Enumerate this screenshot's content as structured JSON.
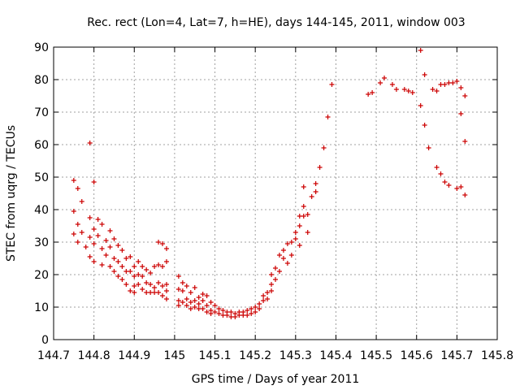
{
  "chart_data": {
    "type": "scatter",
    "title": "Rec. rect (Lon=4, Lat=7, h=HE), days 144-145, 2011, window 003",
    "xlabel": "GPS time / Days of year 2011",
    "ylabel": "STEC from uqrg / TECUs",
    "xlim": [
      144.7,
      145.8
    ],
    "ylim": [
      0,
      90
    ],
    "grid": true,
    "marker": "plus",
    "color": "#cc0000",
    "x_ticks": [
      "144.7",
      "144.8",
      "144.9",
      "145",
      "145.1",
      "145.2",
      "145.3",
      "145.4",
      "145.5",
      "145.6",
      "145.7",
      "145.8"
    ],
    "x_tick_values": [
      144.7,
      144.8,
      144.9,
      145.0,
      145.1,
      145.2,
      145.3,
      145.4,
      145.5,
      145.6,
      145.7,
      145.8
    ],
    "y_ticks": [
      "0",
      "10",
      "20",
      "30",
      "40",
      "50",
      "60",
      "70",
      "80",
      "90"
    ],
    "y_tick_values": [
      0,
      10,
      20,
      30,
      40,
      50,
      60,
      70,
      80,
      90
    ],
    "series": [
      {
        "name": "STEC",
        "points": [
          [
            144.75,
            49
          ],
          [
            144.75,
            39.5
          ],
          [
            144.75,
            32.5
          ],
          [
            144.76,
            46.5
          ],
          [
            144.76,
            35.5
          ],
          [
            144.76,
            30
          ],
          [
            144.77,
            42.5
          ],
          [
            144.77,
            33
          ],
          [
            144.78,
            28.5
          ],
          [
            144.79,
            60.5
          ],
          [
            144.79,
            37.5
          ],
          [
            144.79,
            31.5
          ],
          [
            144.79,
            25.5
          ],
          [
            144.8,
            48.5
          ],
          [
            144.8,
            34
          ],
          [
            144.8,
            29.5
          ],
          [
            144.8,
            24
          ],
          [
            144.81,
            37
          ],
          [
            144.81,
            32
          ],
          [
            144.82,
            35.5
          ],
          [
            144.82,
            28
          ],
          [
            144.82,
            23
          ],
          [
            144.83,
            30.5
          ],
          [
            144.83,
            26
          ],
          [
            144.84,
            33.5
          ],
          [
            144.84,
            28.5
          ],
          [
            144.84,
            22.5
          ],
          [
            144.85,
            31
          ],
          [
            144.85,
            25
          ],
          [
            144.85,
            21
          ],
          [
            144.86,
            29
          ],
          [
            144.86,
            24
          ],
          [
            144.86,
            19.5
          ],
          [
            144.87,
            27.5
          ],
          [
            144.87,
            22.5
          ],
          [
            144.87,
            18.5
          ],
          [
            144.88,
            25
          ],
          [
            144.88,
            21
          ],
          [
            144.88,
            17
          ],
          [
            144.89,
            25.5
          ],
          [
            144.89,
            21
          ],
          [
            144.89,
            15
          ],
          [
            144.9,
            22.5
          ],
          [
            144.9,
            19.5
          ],
          [
            144.9,
            16.5
          ],
          [
            144.9,
            14.5
          ],
          [
            144.91,
            24
          ],
          [
            144.91,
            20
          ],
          [
            144.91,
            17
          ],
          [
            144.92,
            22.5
          ],
          [
            144.92,
            19.5
          ],
          [
            144.92,
            15.5
          ],
          [
            144.93,
            21.5
          ],
          [
            144.93,
            17.5
          ],
          [
            144.93,
            14.5
          ],
          [
            144.94,
            20.5
          ],
          [
            144.94,
            17
          ],
          [
            144.94,
            14.5
          ],
          [
            144.95,
            22.5
          ],
          [
            144.95,
            16
          ],
          [
            144.95,
            14.5
          ],
          [
            144.96,
            30
          ],
          [
            144.96,
            23
          ],
          [
            144.96,
            17.5
          ],
          [
            144.96,
            14.5
          ],
          [
            144.97,
            29.5
          ],
          [
            144.97,
            22.5
          ],
          [
            144.97,
            16.5
          ],
          [
            144.97,
            13.5
          ],
          [
            144.98,
            28
          ],
          [
            144.98,
            24
          ],
          [
            144.98,
            17
          ],
          [
            144.98,
            15
          ],
          [
            144.98,
            12.5
          ],
          [
            145.01,
            19.5
          ],
          [
            145.01,
            15.5
          ],
          [
            145.01,
            12
          ],
          [
            145.01,
            10.5
          ],
          [
            145.02,
            17.5
          ],
          [
            145.02,
            15
          ],
          [
            145.02,
            11.5
          ],
          [
            145.03,
            16.5
          ],
          [
            145.03,
            12.5
          ],
          [
            145.03,
            10.5
          ],
          [
            145.04,
            14.5
          ],
          [
            145.04,
            11.5
          ],
          [
            145.04,
            9.5
          ],
          [
            145.05,
            16
          ],
          [
            145.05,
            12
          ],
          [
            145.05,
            10
          ],
          [
            145.06,
            13
          ],
          [
            145.06,
            11
          ],
          [
            145.06,
            9.5
          ],
          [
            145.07,
            14
          ],
          [
            145.07,
            12
          ],
          [
            145.07,
            9.5
          ],
          [
            145.08,
            13.5
          ],
          [
            145.08,
            10.5
          ],
          [
            145.08,
            8.5
          ],
          [
            145.09,
            11.5
          ],
          [
            145.09,
            9
          ],
          [
            145.09,
            8
          ],
          [
            145.1,
            10.5
          ],
          [
            145.1,
            8.5
          ],
          [
            145.11,
            9.5
          ],
          [
            145.11,
            8
          ],
          [
            145.12,
            9
          ],
          [
            145.12,
            7.5
          ],
          [
            145.13,
            8.5
          ],
          [
            145.13,
            7.5
          ],
          [
            145.14,
            8.5
          ],
          [
            145.14,
            7
          ],
          [
            145.15,
            8
          ],
          [
            145.15,
            7
          ],
          [
            145.16,
            8.5
          ],
          [
            145.16,
            7.5
          ],
          [
            145.17,
            8.5
          ],
          [
            145.17,
            7.5
          ],
          [
            145.18,
            9
          ],
          [
            145.18,
            7.5
          ],
          [
            145.19,
            9.5
          ],
          [
            145.19,
            8
          ],
          [
            145.2,
            10
          ],
          [
            145.2,
            8.5
          ],
          [
            145.21,
            11
          ],
          [
            145.21,
            9.5
          ],
          [
            145.22,
            13.5
          ],
          [
            145.22,
            12
          ],
          [
            145.23,
            14.5
          ],
          [
            145.23,
            12.5
          ],
          [
            145.24,
            17
          ],
          [
            145.24,
            20
          ],
          [
            145.24,
            15
          ],
          [
            145.25,
            22
          ],
          [
            145.25,
            18.5
          ],
          [
            145.26,
            21
          ],
          [
            145.26,
            26
          ],
          [
            145.27,
            25
          ],
          [
            145.27,
            27.5
          ],
          [
            145.28,
            23.5
          ],
          [
            145.28,
            29.5
          ],
          [
            145.29,
            30
          ],
          [
            145.29,
            26
          ],
          [
            145.3,
            33
          ],
          [
            145.3,
            31
          ],
          [
            145.31,
            35
          ],
          [
            145.31,
            29
          ],
          [
            145.31,
            38
          ],
          [
            145.32,
            41
          ],
          [
            145.32,
            47
          ],
          [
            145.32,
            38
          ],
          [
            145.33,
            33
          ],
          [
            145.33,
            38.5
          ],
          [
            145.34,
            44
          ],
          [
            145.35,
            45.5
          ],
          [
            145.35,
            48
          ],
          [
            145.36,
            53
          ],
          [
            145.37,
            59
          ],
          [
            145.38,
            68.5
          ],
          [
            145.39,
            78.5
          ],
          [
            145.48,
            75.5
          ],
          [
            145.49,
            76
          ],
          [
            145.51,
            79
          ],
          [
            145.52,
            80.5
          ],
          [
            145.54,
            78.5
          ],
          [
            145.55,
            77
          ],
          [
            145.57,
            77
          ],
          [
            145.58,
            76.5
          ],
          [
            145.59,
            76
          ],
          [
            145.61,
            89
          ],
          [
            145.61,
            72
          ],
          [
            145.62,
            81.5
          ],
          [
            145.62,
            66
          ],
          [
            145.63,
            59
          ],
          [
            145.64,
            77
          ],
          [
            145.65,
            76.5
          ],
          [
            145.65,
            53
          ],
          [
            145.66,
            78.5
          ],
          [
            145.66,
            51
          ],
          [
            145.67,
            78.5
          ],
          [
            145.67,
            48.5
          ],
          [
            145.68,
            79
          ],
          [
            145.68,
            47.5
          ],
          [
            145.69,
            79
          ],
          [
            145.7,
            79.5
          ],
          [
            145.7,
            46.5
          ],
          [
            145.71,
            77.5
          ],
          [
            145.71,
            69.5
          ],
          [
            145.71,
            47
          ],
          [
            145.72,
            75
          ],
          [
            145.72,
            61
          ],
          [
            145.72,
            44.5
          ]
        ]
      }
    ]
  }
}
